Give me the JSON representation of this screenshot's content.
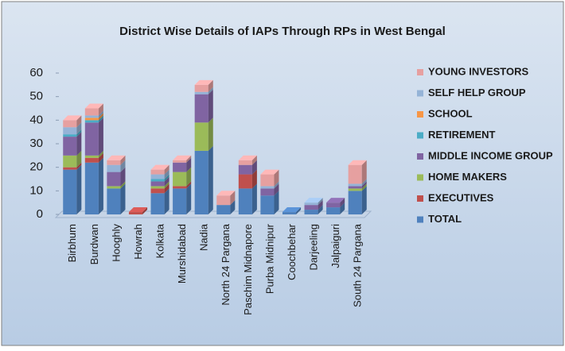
{
  "chart_data": {
    "type": "bar",
    "stacked": true,
    "title": "District Wise Details of IAPs Through  RPs in West Bengal",
    "categories": [
      "Birbhum",
      "Burdwan",
      "Hooghly",
      "Howrah",
      "Kolkata",
      "Murshidabad",
      "Nadia",
      "North 24 Pargana",
      "Paschim Midnapore",
      "Purba Midnipur",
      "Coochbehar",
      "Darjeeling",
      "Jalpaiguri",
      "South 24 Pargana"
    ],
    "series": [
      {
        "name": "TOTAL",
        "color": "#4f81bd",
        "values": [
          19,
          22,
          11,
          0,
          9,
          11,
          27,
          4,
          11,
          8,
          1,
          2,
          3,
          10
        ]
      },
      {
        "name": "EXECUTIVES",
        "color": "#c0504d",
        "values": [
          1,
          2,
          0,
          1,
          2,
          1,
          0,
          0,
          6,
          0,
          0,
          0,
          0,
          0
        ]
      },
      {
        "name": "HOME MAKERS",
        "color": "#9bbb59",
        "values": [
          5,
          1,
          1,
          0,
          1,
          6,
          12,
          0,
          0,
          0,
          0,
          0,
          0,
          1
        ]
      },
      {
        "name": "MIDDLE INCOME GROUP",
        "color": "#8064a2",
        "values": [
          8,
          14,
          6,
          0,
          2,
          4,
          12,
          0,
          4,
          3,
          0,
          2,
          2,
          1
        ]
      },
      {
        "name": "RETIREMENT",
        "color": "#4bacc6",
        "values": [
          1,
          1,
          0,
          0,
          1,
          0,
          0,
          0,
          0,
          0,
          0,
          0,
          0,
          0
        ]
      },
      {
        "name": "SCHOOL",
        "color": "#f79646",
        "values": [
          0,
          1,
          0,
          0,
          0,
          0,
          0,
          0,
          0,
          0,
          0,
          0,
          0,
          0
        ]
      },
      {
        "name": "SELF HELP GROUP",
        "color": "#95b3d7",
        "values": [
          3,
          1,
          3,
          0,
          2,
          0,
          1,
          0,
          0,
          1,
          0,
          1,
          0,
          1
        ]
      },
      {
        "name": "YOUNG INVESTORS",
        "color": "#e6a0a0",
        "values": [
          3,
          3,
          2,
          0,
          2,
          1,
          3,
          4,
          2,
          5,
          0,
          0,
          0,
          8
        ]
      }
    ],
    "ylim": [
      0,
      60
    ],
    "yticks": [
      0,
      10,
      20,
      30,
      40,
      50,
      60
    ],
    "legend": "right"
  }
}
